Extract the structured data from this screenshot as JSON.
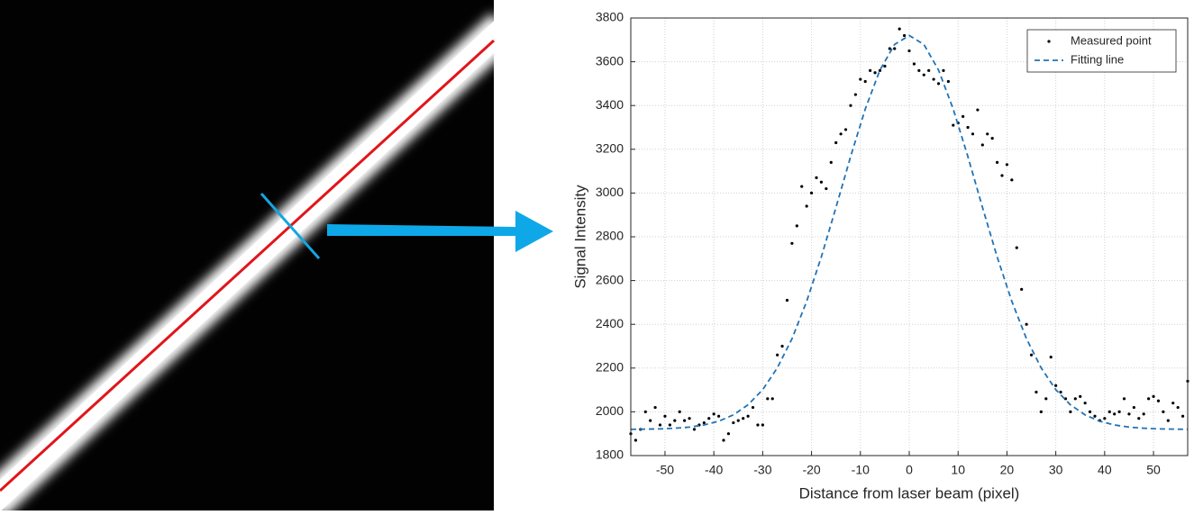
{
  "chart_data": {
    "type": "scatter",
    "xlabel": "Distance from laser beam (pixel)",
    "ylabel": "Signal Intensity",
    "xlim": [
      -57,
      57
    ],
    "ylim": [
      1800,
      3800
    ],
    "xticks": [
      -50,
      -40,
      -30,
      -20,
      -10,
      0,
      10,
      20,
      30,
      40,
      50
    ],
    "yticks": [
      1800,
      2000,
      2200,
      2400,
      2600,
      2800,
      3000,
      3200,
      3400,
      3600,
      3800
    ],
    "grid": true,
    "legend": "top-right",
    "series": [
      {
        "name": "Measured point",
        "color": "#000000",
        "mark": "point",
        "x": [
          -57,
          -56,
          -55,
          -54,
          -53,
          -52,
          -51,
          -50,
          -49,
          -48,
          -47,
          -46,
          -45,
          -44,
          -43,
          -42,
          -41,
          -40,
          -39,
          -38,
          -37,
          -36,
          -35,
          -34,
          -33,
          -32,
          -31,
          -30,
          -29,
          -28,
          -27,
          -26,
          -25,
          -24,
          -23,
          -22,
          -21,
          -20,
          -19,
          -18,
          -17,
          -16,
          -15,
          -14,
          -13,
          -12,
          -11,
          -10,
          -9,
          -8,
          -7,
          -6,
          -5,
          -4,
          -3,
          -2,
          -1,
          0,
          1,
          2,
          3,
          4,
          5,
          6,
          7,
          8,
          9,
          10,
          11,
          12,
          13,
          14,
          15,
          16,
          17,
          18,
          19,
          20,
          21,
          22,
          23,
          24,
          25,
          26,
          27,
          28,
          29,
          30,
          31,
          32,
          33,
          34,
          35,
          36,
          37,
          38,
          39,
          40,
          41,
          42,
          43,
          44,
          45,
          46,
          47,
          48,
          49,
          50,
          51,
          52,
          53,
          54,
          55,
          56,
          57
        ],
        "values": [
          1900,
          1870,
          1920,
          2000,
          1960,
          2020,
          1940,
          1980,
          1940,
          1960,
          2000,
          1960,
          1970,
          1920,
          1940,
          1950,
          1970,
          1990,
          1980,
          1870,
          1900,
          1950,
          1960,
          1970,
          1980,
          2020,
          1940,
          1940,
          2060,
          2060,
          2260,
          2300,
          2510,
          2770,
          2850,
          3030,
          2940,
          3000,
          3070,
          3050,
          3020,
          3140,
          3230,
          3270,
          3290,
          3400,
          3450,
          3520,
          3510,
          3560,
          3550,
          3560,
          3580,
          3660,
          3660,
          3750,
          3720,
          3650,
          3590,
          3560,
          3540,
          3560,
          3520,
          3500,
          3560,
          3510,
          3310,
          3320,
          3350,
          3300,
          3270,
          3380,
          3220,
          3270,
          3250,
          3140,
          3080,
          3130,
          3060,
          2750,
          2560,
          2400,
          2260,
          2090,
          2000,
          2060,
          2250,
          2120,
          2090,
          2060,
          2000,
          2060,
          2070,
          2040,
          2000,
          1980,
          1960,
          1970,
          2000,
          1990,
          2000,
          2060,
          1990,
          2020,
          1970,
          1990,
          2060,
          2070,
          2050,
          2000,
          1960,
          2040,
          2020,
          1980,
          2140
        ]
      },
      {
        "name": "Fitting line",
        "color": "#2273b5",
        "mark": "dashed-line",
        "x": [
          -57,
          -54,
          -51,
          -48,
          -45,
          -42,
          -39,
          -36,
          -33,
          -30,
          -27,
          -24,
          -21,
          -18,
          -15,
          -12,
          -9,
          -6,
          -3,
          0,
          3,
          6,
          9,
          12,
          15,
          18,
          21,
          24,
          27,
          30,
          33,
          36,
          39,
          42,
          45,
          48,
          51,
          54,
          57
        ],
        "values": [
          1920,
          1921,
          1922,
          1925,
          1930,
          1940,
          1957,
          1986,
          2032,
          2101,
          2201,
          2334,
          2505,
          2708,
          2934,
          3167,
          3384,
          3562,
          3679,
          3720,
          3679,
          3562,
          3384,
          3167,
          2934,
          2708,
          2505,
          2334,
          2201,
          2101,
          2032,
          1986,
          1957,
          1940,
          1930,
          1925,
          1922,
          1921,
          1920
        ]
      }
    ]
  }
}
